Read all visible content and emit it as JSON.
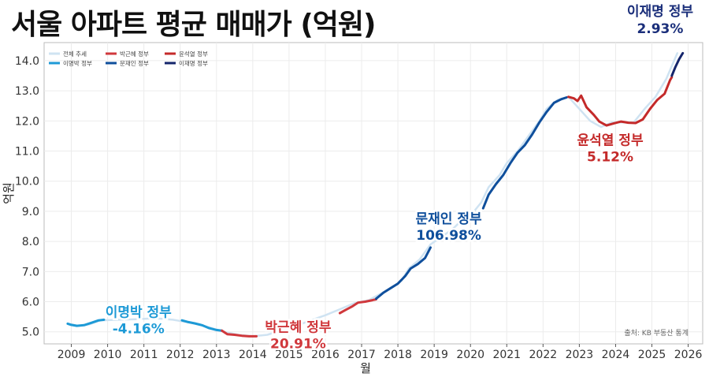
{
  "chart_data": {
    "type": "line",
    "title": "서울 아파트 평균 매매가 (억원)",
    "xlabel": "월",
    "ylabel": "억원",
    "xlim": [
      2008.25,
      2026.4
    ],
    "ylim": [
      4.6,
      14.6
    ],
    "x_ticks": [
      2009,
      2010,
      2011,
      2012,
      2013,
      2014,
      2015,
      2016,
      2017,
      2018,
      2019,
      2020,
      2021,
      2022,
      2023,
      2024,
      2025,
      2026
    ],
    "y_ticks": [
      5.0,
      6.0,
      7.0,
      8.0,
      9.0,
      10.0,
      11.0,
      12.0,
      13.0,
      14.0
    ],
    "grid": true,
    "legend_position": "top-left",
    "legend": [
      {
        "label": "전체 추세",
        "color": "#cfe3f2"
      },
      {
        "label": "박근혜 정부",
        "color": "#d0383c"
      },
      {
        "label": "윤석열 정부",
        "color": "#c42a2a"
      },
      {
        "label": "이명박 정부",
        "color": "#1e9ad6"
      },
      {
        "label": "문재인 정부",
        "color": "#0f4f9c"
      },
      {
        "label": "이재명 정부",
        "color": "#14256b"
      }
    ],
    "series": [
      {
        "name": "전체 추세",
        "color": "#cfe3f2",
        "points": [
          [
            2008.9,
            5.27
          ],
          [
            2009.2,
            5.2
          ],
          [
            2009.5,
            5.25
          ],
          [
            2009.8,
            5.38
          ],
          [
            2010.3,
            5.4
          ],
          [
            2010.8,
            5.42
          ],
          [
            2011.3,
            5.45
          ],
          [
            2011.8,
            5.4
          ],
          [
            2012.3,
            5.3
          ],
          [
            2012.8,
            5.15
          ],
          [
            2013.2,
            5.0
          ],
          [
            2013.6,
            4.9
          ],
          [
            2014.0,
            4.85
          ],
          [
            2014.4,
            4.9
          ],
          [
            2014.8,
            5.05
          ],
          [
            2015.2,
            5.2
          ],
          [
            2015.6,
            5.38
          ],
          [
            2016.0,
            5.55
          ],
          [
            2016.4,
            5.75
          ],
          [
            2016.8,
            5.95
          ],
          [
            2017.2,
            6.05
          ],
          [
            2017.5,
            6.25
          ],
          [
            2017.8,
            6.45
          ],
          [
            2018.1,
            6.7
          ],
          [
            2018.3,
            7.1
          ],
          [
            2018.6,
            7.4
          ],
          [
            2018.9,
            7.9
          ],
          [
            2019.2,
            8.15
          ],
          [
            2019.5,
            8.4
          ],
          [
            2019.8,
            8.75
          ],
          [
            2020.1,
            9.0
          ],
          [
            2020.3,
            9.3
          ],
          [
            2020.5,
            9.8
          ],
          [
            2020.8,
            10.2
          ],
          [
            2021.0,
            10.6
          ],
          [
            2021.3,
            11.0
          ],
          [
            2021.6,
            11.5
          ],
          [
            2021.9,
            12.0
          ],
          [
            2022.1,
            12.4
          ],
          [
            2022.4,
            12.7
          ],
          [
            2022.7,
            12.8
          ],
          [
            2023.0,
            12.4
          ],
          [
            2023.3,
            12.0
          ],
          [
            2023.6,
            11.8
          ],
          [
            2023.9,
            11.95
          ],
          [
            2024.2,
            11.95
          ],
          [
            2024.5,
            11.95
          ],
          [
            2024.8,
            12.4
          ],
          [
            2025.1,
            12.8
          ],
          [
            2025.4,
            13.4
          ],
          [
            2025.7,
            14.25
          ]
        ]
      },
      {
        "name": "이명박 정부",
        "color": "#1e9ad6",
        "points": [
          [
            2008.9,
            5.27
          ],
          [
            2009.0,
            5.23
          ],
          [
            2009.15,
            5.2
          ],
          [
            2009.35,
            5.22
          ],
          [
            2009.55,
            5.3
          ],
          [
            2009.75,
            5.38
          ],
          [
            2009.9,
            5.4
          ]
        ]
      },
      {
        "name": "이명박 정부",
        "color": "#1e9ad6",
        "points": [
          [
            2012.05,
            5.38
          ],
          [
            2012.2,
            5.33
          ],
          [
            2012.4,
            5.28
          ],
          [
            2012.6,
            5.22
          ],
          [
            2012.8,
            5.12
          ],
          [
            2013.0,
            5.06
          ],
          [
            2013.15,
            5.04
          ]
        ]
      },
      {
        "name": "박근혜 정부",
        "color": "#d0383c",
        "points": [
          [
            2013.15,
            5.04
          ],
          [
            2013.3,
            4.92
          ],
          [
            2013.5,
            4.9
          ],
          [
            2013.7,
            4.87
          ],
          [
            2013.9,
            4.85
          ],
          [
            2014.1,
            4.85
          ]
        ]
      },
      {
        "name": "박근혜 정부",
        "color": "#d0383c",
        "points": [
          [
            2016.4,
            5.62
          ],
          [
            2016.55,
            5.72
          ],
          [
            2016.75,
            5.85
          ],
          [
            2016.9,
            5.97
          ],
          [
            2017.1,
            6.0
          ],
          [
            2017.3,
            6.05
          ],
          [
            2017.4,
            6.08
          ]
        ]
      },
      {
        "name": "문재인 정부",
        "color": "#0f4f9c",
        "points": [
          [
            2017.4,
            6.1
          ],
          [
            2017.6,
            6.3
          ],
          [
            2017.8,
            6.45
          ],
          [
            2018.0,
            6.6
          ],
          [
            2018.2,
            6.85
          ],
          [
            2018.35,
            7.1
          ],
          [
            2018.55,
            7.25
          ],
          [
            2018.75,
            7.45
          ],
          [
            2018.9,
            7.8
          ]
        ]
      },
      {
        "name": "문재인 정부",
        "color": "#0f4f9c",
        "points": [
          [
            2020.35,
            9.1
          ],
          [
            2020.5,
            9.55
          ],
          [
            2020.7,
            9.9
          ],
          [
            2020.9,
            10.2
          ],
          [
            2021.1,
            10.6
          ],
          [
            2021.3,
            10.95
          ],
          [
            2021.5,
            11.2
          ],
          [
            2021.7,
            11.55
          ],
          [
            2021.9,
            11.95
          ],
          [
            2022.1,
            12.3
          ],
          [
            2022.3,
            12.6
          ],
          [
            2022.5,
            12.72
          ],
          [
            2022.65,
            12.78
          ]
        ]
      },
      {
        "name": "윤석열 정부",
        "color": "#c42a2a",
        "points": [
          [
            2022.7,
            12.8
          ],
          [
            2022.85,
            12.75
          ],
          [
            2022.95,
            12.66
          ],
          [
            2023.05,
            12.84
          ],
          [
            2023.2,
            12.45
          ],
          [
            2023.4,
            12.2
          ],
          [
            2023.55,
            11.98
          ],
          [
            2023.75,
            11.85
          ],
          [
            2023.95,
            11.92
          ],
          [
            2024.15,
            11.98
          ],
          [
            2024.35,
            11.94
          ],
          [
            2024.55,
            11.93
          ],
          [
            2024.75,
            12.05
          ],
          [
            2024.95,
            12.4
          ],
          [
            2025.15,
            12.7
          ],
          [
            2025.35,
            12.9
          ],
          [
            2025.5,
            13.35
          ],
          [
            2025.55,
            13.45
          ]
        ]
      },
      {
        "name": "이재명 정부",
        "color": "#14256b",
        "points": [
          [
            2025.55,
            13.5
          ],
          [
            2025.65,
            13.8
          ],
          [
            2025.75,
            14.05
          ],
          [
            2025.85,
            14.25
          ]
        ]
      }
    ],
    "annotations": [
      {
        "name": "이명박 정부",
        "pct": "-4.16%",
        "color": "#1e9ad6",
        "x": 2010.85,
        "y": 5.4
      },
      {
        "name": "박근혜 정부",
        "pct": "20.91%",
        "color": "#d0383c",
        "x": 2015.25,
        "y": 4.9
      },
      {
        "name": "문재인 정부",
        "pct": "106.98%",
        "color": "#0f4f9c",
        "x": 2019.4,
        "y": 8.5
      },
      {
        "name": "윤석열 정부",
        "pct": "5.12%",
        "color": "#c42a2a",
        "x": 2023.85,
        "y": 11.1
      }
    ],
    "corner_label": {
      "name": "이재명 정부",
      "pct": "2.93%"
    },
    "source": "출처: KB 부동산 통계"
  }
}
